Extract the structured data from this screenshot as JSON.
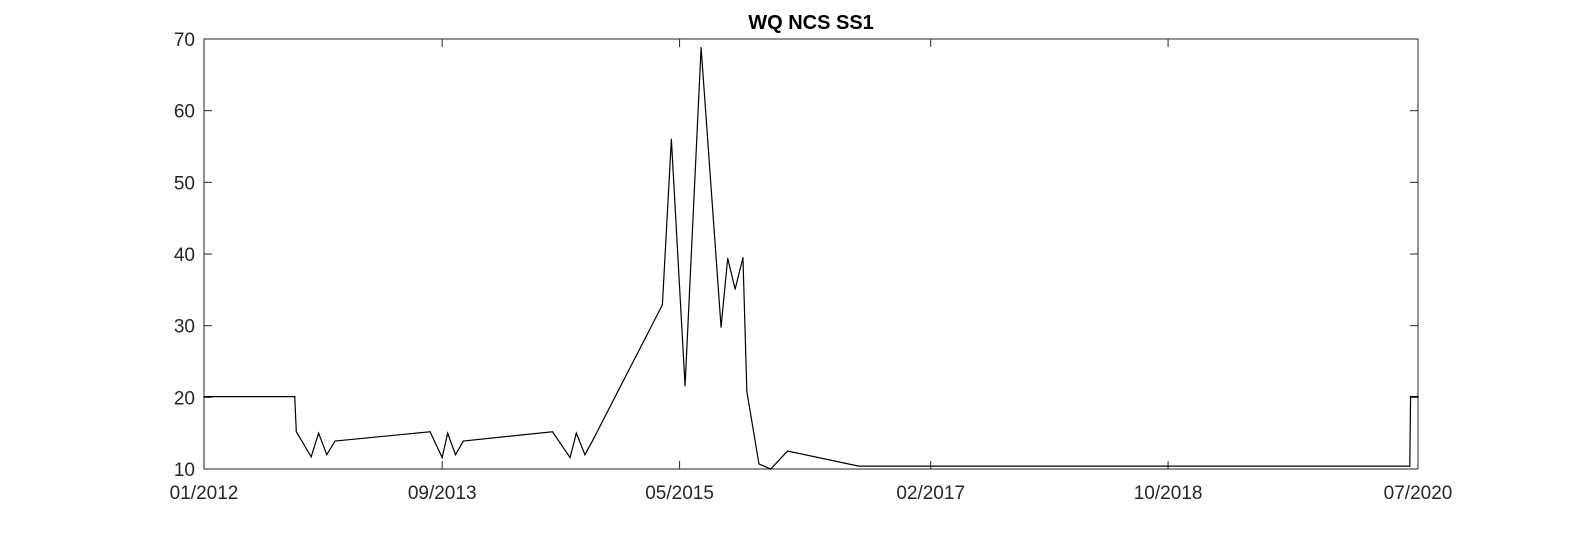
{
  "chart_data": {
    "type": "line",
    "title": "WQ NCS SS1",
    "xlabel": "",
    "ylabel": "",
    "ylim": [
      10,
      70
    ],
    "yticks": [
      10,
      20,
      30,
      40,
      50,
      60,
      70
    ],
    "xlim": [
      "2012-01-01",
      "2020-07-01"
    ],
    "xticks": [
      {
        "date": "2012-01-01",
        "label": "01/2012"
      },
      {
        "date": "2013-09-01",
        "label": "09/2013"
      },
      {
        "date": "2015-05-01",
        "label": "05/2015"
      },
      {
        "date": "2017-02-01",
        "label": "02/2017"
      },
      {
        "date": "2018-10-01",
        "label": "10/2018"
      },
      {
        "date": "2020-07-01",
        "label": "07/2020"
      }
    ],
    "grid": false,
    "line_color": "#000000",
    "series": [
      {
        "points": [
          [
            "2012-01-01",
            20.1
          ],
          [
            "2012-08-20",
            20.1
          ],
          [
            "2012-08-24",
            15.2
          ],
          [
            "2012-10-01",
            11.7
          ],
          [
            "2012-10-20",
            15.0
          ],
          [
            "2012-11-10",
            12.0
          ],
          [
            "2012-12-01",
            13.9
          ],
          [
            "2013-08-01",
            15.2
          ],
          [
            "2013-09-01",
            11.6
          ],
          [
            "2013-09-15",
            15.0
          ],
          [
            "2013-10-05",
            12.0
          ],
          [
            "2013-10-25",
            13.9
          ],
          [
            "2014-06-10",
            15.2
          ],
          [
            "2014-07-25",
            11.6
          ],
          [
            "2014-08-10",
            15.0
          ],
          [
            "2014-09-01",
            12.0
          ],
          [
            "2014-09-20",
            13.9
          ],
          [
            "2015-03-18",
            32.9
          ],
          [
            "2015-04-10",
            56.0
          ],
          [
            "2015-05-15",
            21.6
          ],
          [
            "2015-06-25",
            68.8
          ],
          [
            "2015-08-15",
            29.8
          ],
          [
            "2015-09-01",
            39.4
          ],
          [
            "2015-09-20",
            35.1
          ],
          [
            "2015-10-10",
            39.5
          ],
          [
            "2015-10-20",
            20.8
          ],
          [
            "2015-11-20",
            10.7
          ],
          [
            "2015-12-20",
            10.0
          ],
          [
            "2016-02-01",
            12.5
          ],
          [
            "2016-08-01",
            10.4
          ],
          [
            "2020-06-10",
            10.4
          ],
          [
            "2020-06-12",
            20.1
          ],
          [
            "2020-07-01",
            20.1
          ]
        ]
      }
    ]
  }
}
